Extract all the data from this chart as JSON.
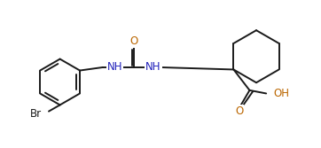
{
  "bg_color": "#ffffff",
  "line_color": "#1a1a1a",
  "atom_color_N": "#2222bb",
  "atom_color_O": "#bb6600",
  "atom_color_Br": "#1a1a1a",
  "line_width": 1.4,
  "font_size_atom": 8.5,
  "fig_width": 3.62,
  "fig_height": 1.67,
  "dpi": 100,
  "xlim": [
    0,
    10
  ],
  "ylim": [
    0,
    4.6
  ]
}
